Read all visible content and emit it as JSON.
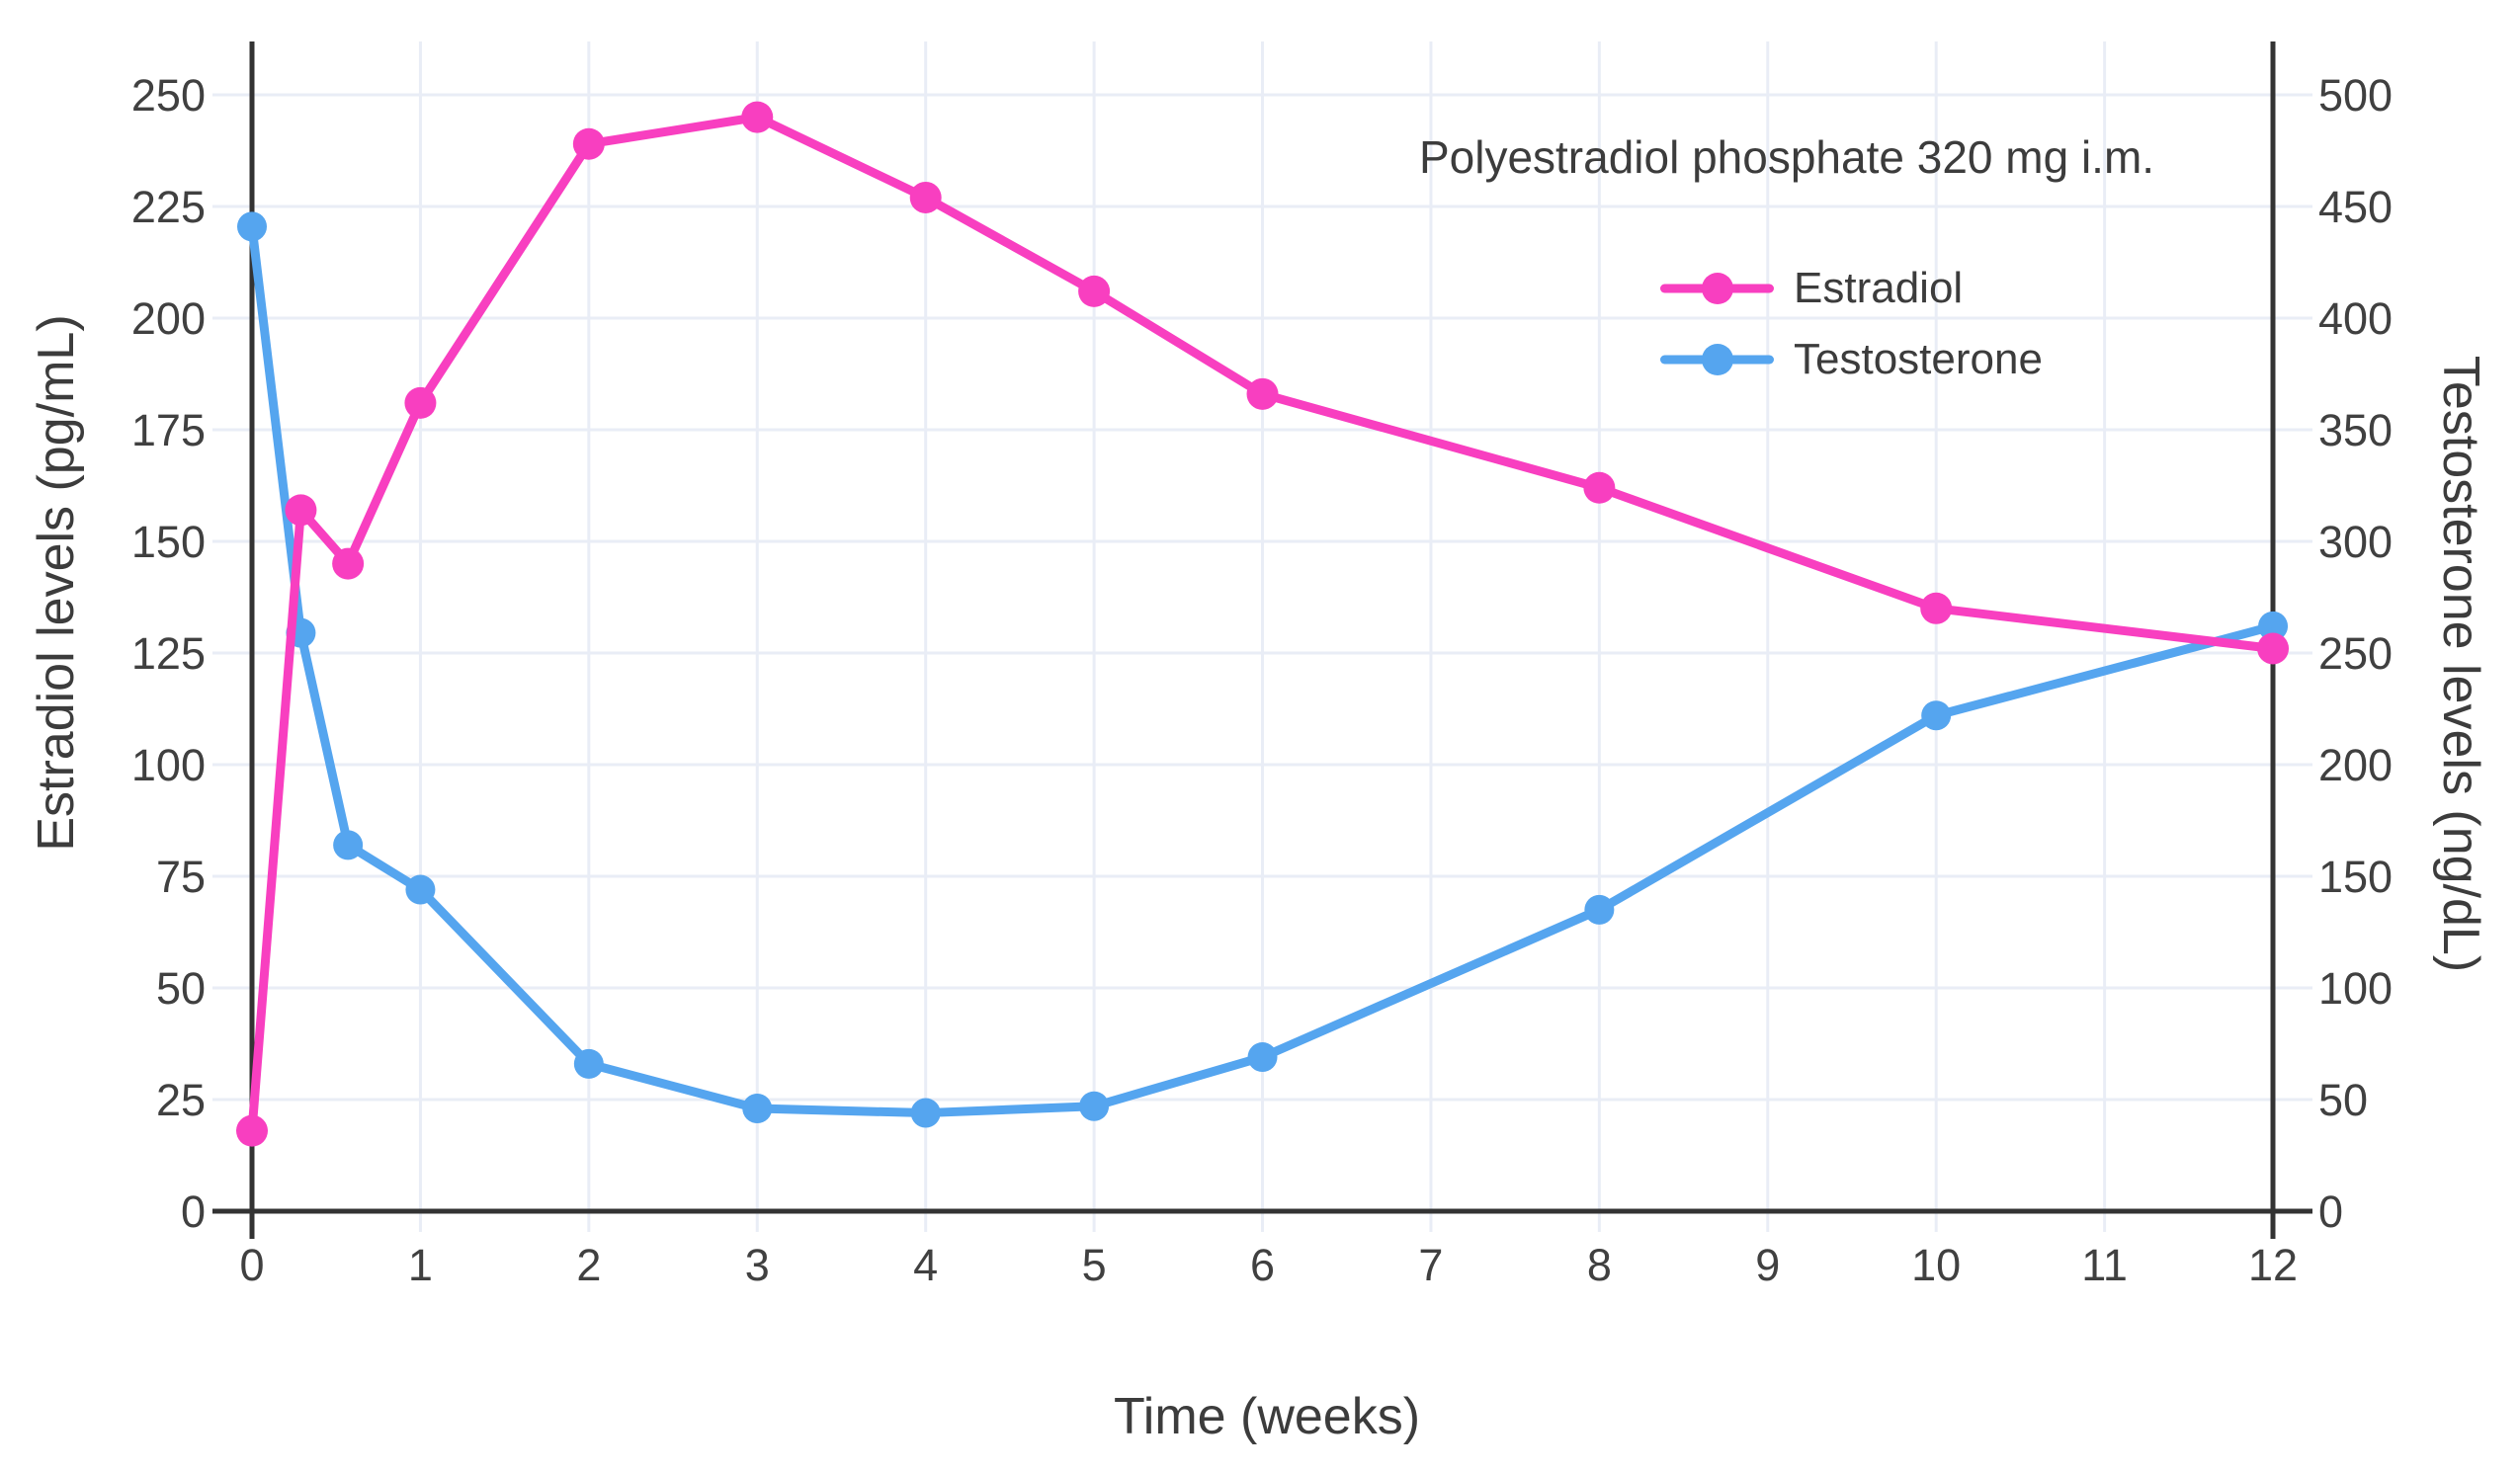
{
  "chart_data": {
    "type": "line",
    "title": "Polyestradiol phosphate 320 mg i.m.",
    "xlabel": "Time (weeks)",
    "ylabel_left": "Estradiol levels (pg/mL)",
    "ylabel_right": "Testosterone levels (ng/dL)",
    "x": [
      0,
      0.29,
      0.57,
      1,
      2,
      3,
      4,
      5,
      6,
      8,
      10,
      12
    ],
    "x_ticks": [
      0,
      1,
      2,
      3,
      4,
      5,
      6,
      7,
      8,
      9,
      10,
      11,
      12
    ],
    "y_left_ticks": [
      0,
      25,
      50,
      75,
      100,
      125,
      150,
      175,
      200,
      225,
      250
    ],
    "y_right_ticks": [
      0,
      50,
      100,
      150,
      200,
      250,
      300,
      350,
      400,
      450,
      500
    ],
    "y_left_range": [
      0,
      250
    ],
    "y_right_range": [
      0,
      500
    ],
    "grid": true,
    "legend_position": "inside-top-right",
    "series": [
      {
        "name": "Estradiol",
        "axis": "left",
        "unit": "pg/mL",
        "color": "#f83fc0",
        "values": [
          18,
          157,
          145,
          181,
          239,
          245,
          227,
          206,
          183,
          162,
          135,
          126
        ]
      },
      {
        "name": "Testosterone",
        "axis": "right",
        "unit": "ng/dL",
        "color": "#55a5ef",
        "values": [
          441,
          259,
          164,
          144,
          66,
          46,
          44,
          47,
          69,
          135,
          222,
          262
        ]
      }
    ],
    "colors": {
      "grid": "#e9edf6",
      "axis": "#333333",
      "tick_text": "#404040",
      "title_text": "#3c3c3c",
      "background": "#ffffff"
    }
  }
}
